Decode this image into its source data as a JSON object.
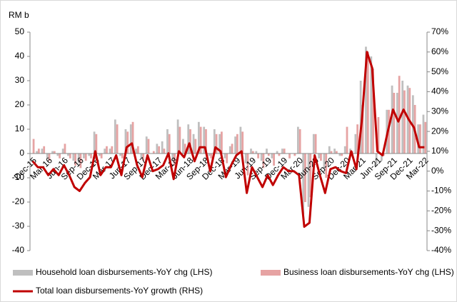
{
  "chart_data": {
    "type": "bar-line",
    "y_label": "RM b",
    "categories": [
      "Dec-15",
      null,
      null,
      "Mar-16",
      null,
      null,
      "Jun-16",
      null,
      null,
      "Sep-16",
      null,
      null,
      "Dec-16",
      null,
      null,
      "Mar-17",
      null,
      null,
      "Jun-17",
      null,
      null,
      "Sep-17",
      null,
      null,
      "Dec-17",
      null,
      null,
      "Mar-18",
      null,
      null,
      "Jun-18",
      null,
      null,
      "Sep-18",
      null,
      null,
      "Dec-18",
      null,
      null,
      "Mar-19",
      null,
      null,
      "Jun-19",
      null,
      null,
      "Sep-19",
      null,
      null,
      "Dec-19",
      null,
      null,
      "Mar-20",
      null,
      null,
      "Jun-20",
      null,
      null,
      "Sep-20",
      null,
      null,
      "Dec-20",
      null,
      null,
      "Mar-21",
      null,
      null,
      "Jun-21",
      null,
      null,
      "Sep-21",
      null,
      null,
      "Dec-21",
      null,
      null,
      "Mar-22"
    ],
    "series": [
      {
        "name": "Household loan disbursements-YoY chg (LHS)",
        "color": "#bfbfbf",
        "kind": "bar",
        "axis": "y",
        "values": [
          0,
          1,
          2,
          -2,
          1,
          -1,
          2,
          -1,
          -3,
          -4,
          -2,
          -1,
          9,
          -1,
          2,
          2,
          14,
          -1,
          10,
          12,
          2,
          -2,
          7,
          0,
          4,
          5,
          10,
          -3,
          14,
          6,
          12,
          8,
          13,
          11,
          -1,
          10,
          8,
          -2,
          3,
          7,
          11,
          -4,
          2,
          1,
          -3,
          2,
          -2,
          1,
          2,
          0,
          0,
          11,
          -25,
          -22,
          8,
          -2,
          -6,
          3,
          2,
          -1,
          3,
          2,
          8,
          30,
          44,
          40,
          -5,
          -3,
          18,
          28,
          25,
          30,
          28,
          24,
          12,
          16
        ]
      },
      {
        "name": "Business loan disbursements-YoY chg (LHS)",
        "color": "#e6a3a3",
        "kind": "bar",
        "axis": "y",
        "values": [
          6,
          2,
          3,
          -3,
          1,
          -2,
          4,
          -2,
          -5,
          -6,
          -3,
          -2,
          8,
          -2,
          3,
          3,
          12,
          -2,
          9,
          13,
          3,
          -3,
          6,
          1,
          3,
          2,
          8,
          -5,
          11,
          4,
          10,
          6,
          11,
          10,
          -2,
          8,
          9,
          -4,
          4,
          8,
          9,
          -9,
          1,
          -2,
          -6,
          -1,
          -5,
          -1,
          2,
          -2,
          -1,
          10,
          -20,
          -18,
          8,
          -3,
          -10,
          1,
          1,
          -1,
          11,
          1,
          12,
          20,
          42,
          35,
          15,
          -1,
          18,
          25,
          32,
          26,
          27,
          20,
          12,
          13
        ]
      },
      {
        "name": "Total loan disbursements-YoY growth (RHS)",
        "color": "#c00000",
        "kind": "line",
        "axis": "y2",
        "values": [
          5,
          2,
          2,
          -2,
          1,
          -2,
          3,
          -2,
          -8,
          -10,
          -6,
          -3,
          10,
          -2,
          2,
          2,
          8,
          -2,
          12,
          14,
          3,
          -3,
          8,
          0,
          1,
          3,
          9,
          -4,
          10,
          7,
          14,
          5,
          12,
          12,
          0,
          12,
          10,
          -3,
          3,
          8,
          10,
          -11,
          2,
          -3,
          -8,
          -2,
          -7,
          -2,
          2,
          0,
          0,
          -2,
          -28,
          -26,
          8,
          -2,
          -11,
          1,
          2,
          0,
          -1,
          10,
          1,
          25,
          60,
          52,
          10,
          8,
          20,
          31,
          25,
          31,
          26,
          22,
          12,
          12
        ]
      }
    ],
    "ylim": [
      -40,
      50
    ],
    "yticks": [
      -40,
      -30,
      -20,
      -10,
      0,
      10,
      20,
      30,
      40,
      50
    ],
    "y2lim": [
      -40,
      70
    ],
    "y2ticks": [
      {
        "value": -40,
        "label": "-40%"
      },
      {
        "value": -30,
        "label": "-30%"
      },
      {
        "value": -20,
        "label": "-20%"
      },
      {
        "value": -10,
        "label": "-10%"
      },
      {
        "value": 0,
        "label": "0%"
      },
      {
        "value": 10,
        "label": "10%"
      },
      {
        "value": 20,
        "label": "20%"
      },
      {
        "value": 30,
        "label": "30%"
      },
      {
        "value": 40,
        "label": "40%"
      },
      {
        "value": 50,
        "label": "50%"
      },
      {
        "value": 60,
        "label": "60%"
      },
      {
        "value": 70,
        "label": "70%"
      }
    ]
  }
}
